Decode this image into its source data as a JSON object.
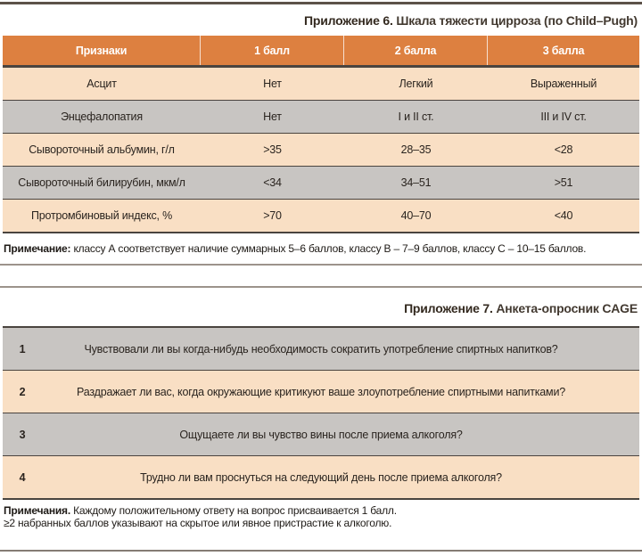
{
  "colors": {
    "header_bg": "#DD8040",
    "header_text": "#FFFFFF",
    "row_peach": "#F9DFC4",
    "row_gray": "#C8C5C2",
    "row_border": "#4A443F",
    "top_rule": "#5C5249",
    "mid_rule": "#9C938B",
    "bottom_rule": "#857C74"
  },
  "appendix6": {
    "title_prefix": "Приложение 6.",
    "title_rest": " Шкала тяжести цирроза (по Child–Pugh)",
    "table": {
      "header": [
        "Признаки",
        "1 балл",
        "2 балла",
        "3 балла"
      ],
      "rows": [
        {
          "cells": [
            "Асцит",
            "Нет",
            "Легкий",
            "Выраженный"
          ]
        },
        {
          "cells": [
            "Энцефалопатия",
            "Нет",
            "I и II ст.",
            "III и IV ст."
          ]
        },
        {
          "cells": [
            "Сывороточный альбумин, г/л",
            ">35",
            "28–35",
            "<28"
          ]
        },
        {
          "cells": [
            "Сывороточный билирубин, мкм/л",
            "<34",
            "34–51",
            ">51"
          ]
        },
        {
          "cells": [
            "Протромбиновый индекс, %",
            ">70",
            "40–70",
            "<40"
          ]
        }
      ]
    },
    "note_label": "Примечание:",
    "note_text": " классу А соответствует наличие суммарных 5–6 баллов, классу В – 7–9 баллов, классу С – 10–15 баллов."
  },
  "appendix7": {
    "title_prefix": "Приложение 7.",
    "title_rest": " Анкета-опросник CAGE",
    "questions": [
      {
        "num": "1",
        "text": "Чувствовали ли вы когда-нибудь необходимость сократить употребление спиртных напитков?"
      },
      {
        "num": "2",
        "text": "Раздражает ли вас, когда окружающие критикуют ваше злоупотребление спиртными напитками?"
      },
      {
        "num": "3",
        "text": "Ощущаете ли вы чувство вины после приема алкоголя?"
      },
      {
        "num": "4",
        "text": "Трудно ли вам проснуться на следующий день после приема алкоголя?"
      }
    ],
    "notes_label": "Примечания.",
    "notes_line1": " Каждому положительному ответу на вопрос присваивается 1 балл.",
    "notes_line2": "≥2 набранных баллов указывают на скрытое или явное пристрастие к алкоголю."
  }
}
